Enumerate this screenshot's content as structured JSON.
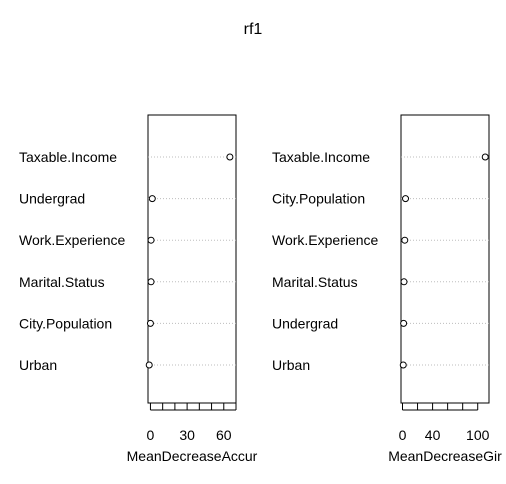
{
  "chart_data": {
    "title": "rf1",
    "type": "scatter",
    "panels": [
      {
        "xlabel": "MeanDecreaseAccur",
        "xlim": [
          -2,
          70
        ],
        "xticks": [
          0,
          10,
          20,
          30,
          40,
          50,
          60,
          70
        ],
        "xtick_labels": [
          "0",
          "",
          "",
          "30",
          "",
          "",
          "60",
          ""
        ],
        "categories": [
          "Taxable.Income",
          "Undergrad",
          "Work.Experience",
          "Marital.Status",
          "City.Population",
          "Urban"
        ],
        "values": [
          65,
          1.5,
          0.5,
          0.5,
          0,
          -1
        ]
      },
      {
        "xlabel": "MeanDecreaseGir",
        "xlim": [
          -2,
          115
        ],
        "xticks": [
          0,
          20,
          40,
          60,
          80,
          100
        ],
        "xtick_labels": [
          "0",
          "",
          "40",
          "",
          "",
          "100"
        ],
        "categories": [
          "Taxable.Income",
          "City.Population",
          "Work.Experience",
          "Marital.Status",
          "Undergrad",
          "Urban"
        ],
        "values": [
          110,
          4,
          3,
          2,
          1.5,
          1
        ]
      }
    ]
  }
}
